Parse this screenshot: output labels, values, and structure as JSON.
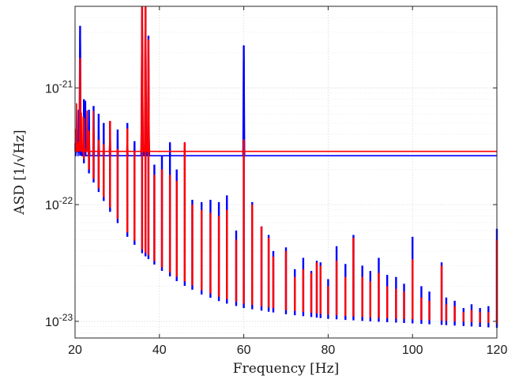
{
  "chart_data": {
    "type": "line",
    "title": "",
    "xlabel": "Frequency [Hz]",
    "ylabel": "ASD [1/√Hz]",
    "xlim": [
      20,
      120
    ],
    "ylim": [
      7.2e-24,
      5e-21
    ],
    "yscale": "log",
    "grid": true,
    "x_ticks": [
      20,
      40,
      60,
      80,
      100,
      120
    ],
    "x_tick_labels": [
      "20",
      "40",
      "60",
      "80",
      "100",
      "120"
    ],
    "y_ticks": [
      1e-23,
      1e-22,
      1e-21
    ],
    "y_tick_labels": [
      {
        "base": "10",
        "exp": "-23"
      },
      {
        "base": "10",
        "exp": "-22"
      },
      {
        "base": "10",
        "exp": "-21"
      }
    ],
    "series": [
      {
        "color": "#0000ff",
        "floor": [
          [
            20,
            3.2e-22
          ],
          [
            22,
            2.3e-22
          ],
          [
            25,
            1.4e-22
          ],
          [
            28,
            9e-23
          ],
          [
            32,
            5.5e-23
          ],
          [
            36,
            3.8e-23
          ],
          [
            40,
            2.8e-23
          ],
          [
            45,
            2.1e-23
          ],
          [
            50,
            1.7e-23
          ],
          [
            55,
            1.45e-23
          ],
          [
            60,
            1.3e-23
          ],
          [
            70,
            1.15e-23
          ],
          [
            80,
            1.05e-23
          ],
          [
            90,
            1e-23
          ],
          [
            100,
            9.6e-24
          ],
          [
            110,
            9.2e-24
          ],
          [
            120,
            8.8e-24
          ]
        ],
        "peaks": [
          [
            21.2,
            3.4e-21
          ],
          [
            22.1,
            8e-22
          ],
          [
            23.3,
            6.5e-22
          ],
          [
            24.4,
            7e-22
          ],
          [
            25.6,
            6e-22
          ],
          [
            26.8,
            5e-22
          ],
          [
            28.3,
            5.2e-22
          ],
          [
            30.1,
            4.4e-22
          ],
          [
            32.4,
            5e-22
          ],
          [
            34.1,
            3.5e-22
          ],
          [
            35.9,
            5e-21
          ],
          [
            36.7,
            5e-21
          ],
          [
            37.4,
            2.8e-21
          ],
          [
            38.8,
            2.2e-22
          ],
          [
            40.6,
            2.6e-22
          ],
          [
            42.5,
            3.4e-22
          ],
          [
            44.1,
            2e-22
          ],
          [
            46.0,
            3.4e-22
          ],
          [
            47.8,
            1.1e-22
          ],
          [
            50.0,
            1.05e-22
          ],
          [
            52.1,
            1.1e-22
          ],
          [
            54.1,
            1.05e-22
          ],
          [
            56.0,
            1.2e-22
          ],
          [
            58.2,
            6e-23
          ],
          [
            60.0,
            2.3e-21
          ],
          [
            62.0,
            1.05e-22
          ],
          [
            64.2,
            6.5e-23
          ],
          [
            65.9,
            5.5e-23
          ],
          [
            67.0,
            4e-23
          ],
          [
            70.0,
            4.3e-23
          ],
          [
            72.1,
            2.8e-23
          ],
          [
            74.1,
            3.5e-23
          ],
          [
            76.0,
            2.7e-23
          ],
          [
            77.3,
            3.3e-23
          ],
          [
            78.2,
            3.2e-23
          ],
          [
            80.0,
            2.3e-23
          ],
          [
            82.0,
            4.4e-23
          ],
          [
            84.1,
            3.1e-23
          ],
          [
            86.0,
            5.5e-23
          ],
          [
            88.1,
            3e-23
          ],
          [
            90.0,
            2.7e-23
          ],
          [
            92.0,
            3.5e-23
          ],
          [
            94.0,
            2.5e-23
          ],
          [
            96.1,
            2.4e-23
          ],
          [
            98.0,
            2.1e-23
          ],
          [
            100.0,
            5.3e-23
          ],
          [
            102.1,
            2e-23
          ],
          [
            104.0,
            1.8e-23
          ],
          [
            106.9,
            3.2e-23
          ],
          [
            108.0,
            1.6e-23
          ],
          [
            110.0,
            1.5e-23
          ],
          [
            112.1,
            1.3e-23
          ],
          [
            114.0,
            1.4e-23
          ],
          [
            116.0,
            1.3e-23
          ],
          [
            118.0,
            1.35e-23
          ],
          [
            120.0,
            6.2e-23
          ]
        ]
      },
      {
        "color": "#ff0000",
        "floor": [
          [
            20,
            3.5e-22
          ],
          [
            22,
            2.5e-22
          ],
          [
            25,
            1.5e-22
          ],
          [
            28,
            9.8e-23
          ],
          [
            32,
            6e-23
          ],
          [
            36,
            4.1e-23
          ],
          [
            40,
            3e-23
          ],
          [
            45,
            2.3e-23
          ],
          [
            50,
            1.85e-23
          ],
          [
            55,
            1.58e-23
          ],
          [
            60,
            1.42e-23
          ],
          [
            70,
            1.25e-23
          ],
          [
            80,
            1.14e-23
          ],
          [
            90,
            1.08e-23
          ],
          [
            100,
            1.04e-23
          ],
          [
            110,
            1e-23
          ],
          [
            120,
            9.6e-24
          ]
        ],
        "peaks": [
          [
            21.2,
            1.8e-21
          ],
          [
            22.1,
            5.5e-22
          ],
          [
            23.3,
            4.3e-22
          ],
          [
            24.4,
            4.5e-22
          ],
          [
            25.6,
            3.6e-22
          ],
          [
            26.8,
            3.3e-22
          ],
          [
            28.3,
            5.2e-22
          ],
          [
            30.1,
            3e-22
          ],
          [
            32.4,
            4.5e-22
          ],
          [
            34.1,
            2.8e-22
          ],
          [
            35.9,
            5e-21
          ],
          [
            36.7,
            5e-21
          ],
          [
            37.4,
            2.6e-21
          ],
          [
            38.8,
            1.8e-22
          ],
          [
            40.6,
            2e-22
          ],
          [
            42.5,
            1.8e-22
          ],
          [
            44.1,
            1.6e-22
          ],
          [
            46.0,
            3.4e-22
          ],
          [
            47.8,
            1e-22
          ],
          [
            50.0,
            9e-23
          ],
          [
            52.1,
            8.5e-23
          ],
          [
            54.1,
            8e-23
          ],
          [
            56.0,
            9e-23
          ],
          [
            58.2,
            5e-23
          ],
          [
            60.0,
            3.6e-22
          ],
          [
            62.0,
            1e-22
          ],
          [
            64.2,
            6.5e-23
          ],
          [
            65.9,
            5.2e-23
          ],
          [
            67.0,
            3.6e-23
          ],
          [
            70.0,
            4e-23
          ],
          [
            72.1,
            2.4e-23
          ],
          [
            74.1,
            2.8e-23
          ],
          [
            76.0,
            2.6e-23
          ],
          [
            77.3,
            3.2e-23
          ],
          [
            78.2,
            3e-23
          ],
          [
            80.0,
            2e-23
          ],
          [
            82.0,
            3.3e-23
          ],
          [
            84.1,
            2.4e-23
          ],
          [
            86.0,
            5.2e-23
          ],
          [
            88.1,
            2.4e-23
          ],
          [
            90.0,
            2.2e-23
          ],
          [
            92.0,
            2.6e-23
          ],
          [
            94.0,
            2e-23
          ],
          [
            96.1,
            1.9e-23
          ],
          [
            98.0,
            1.8e-23
          ],
          [
            100.0,
            3.4e-23
          ],
          [
            102.1,
            1.6e-23
          ],
          [
            104.0,
            1.5e-23
          ],
          [
            106.9,
            3e-23
          ],
          [
            108.0,
            1.4e-23
          ],
          [
            110.0,
            1.35e-23
          ],
          [
            112.1,
            1.2e-23
          ],
          [
            114.0,
            1.25e-23
          ],
          [
            116.0,
            1.2e-23
          ],
          [
            118.0,
            1.2e-23
          ],
          [
            120.0,
            5e-23
          ]
        ]
      }
    ]
  }
}
